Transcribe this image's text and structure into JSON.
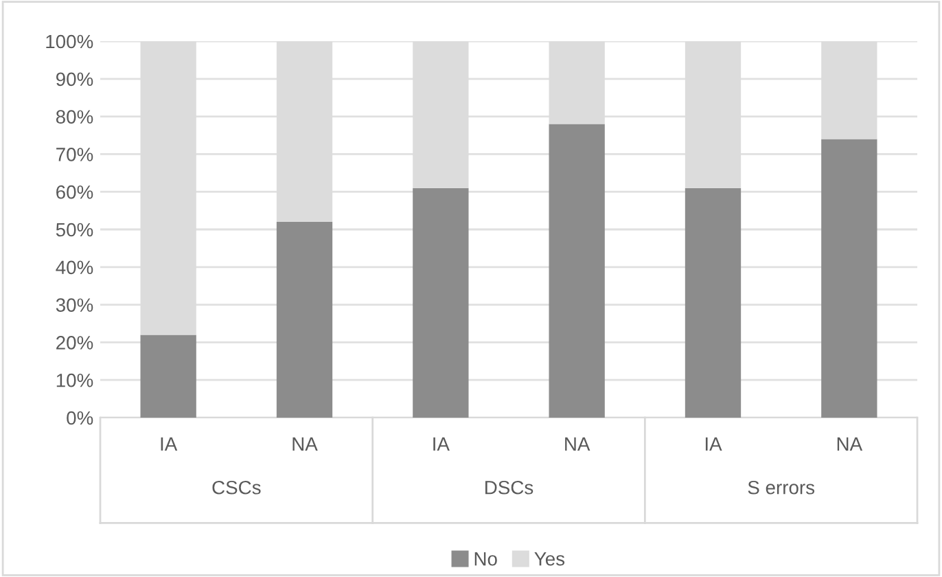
{
  "chart_data": {
    "type": "bar",
    "stacked": true,
    "categories": [
      "IA",
      "NA",
      "IA",
      "NA",
      "IA",
      "NA"
    ],
    "annotations": [
      "CSCs",
      "DSCs",
      "S errors"
    ],
    "series": [
      {
        "name": "No",
        "color": "#8c8c8c",
        "values": [
          22,
          52,
          61,
          78,
          61,
          74
        ]
      },
      {
        "name": "Yes",
        "color": "#dcdcdc",
        "values": [
          78,
          48,
          39,
          22,
          39,
          26
        ]
      }
    ],
    "ylim": [
      0,
      100
    ],
    "yticks": [
      {
        "value": 0,
        "label": "0%"
      },
      {
        "value": 10,
        "label": "10%"
      },
      {
        "value": 20,
        "label": "20%"
      },
      {
        "value": 30,
        "label": "30%"
      },
      {
        "value": 40,
        "label": "40%"
      },
      {
        "value": 50,
        "label": "50%"
      },
      {
        "value": 60,
        "label": "60%"
      },
      {
        "value": 70,
        "label": "70%"
      },
      {
        "value": 80,
        "label": "80%"
      },
      {
        "value": 90,
        "label": "90%"
      },
      {
        "value": 100,
        "label": "100%"
      }
    ],
    "grid": "y",
    "legend": "bottom"
  }
}
